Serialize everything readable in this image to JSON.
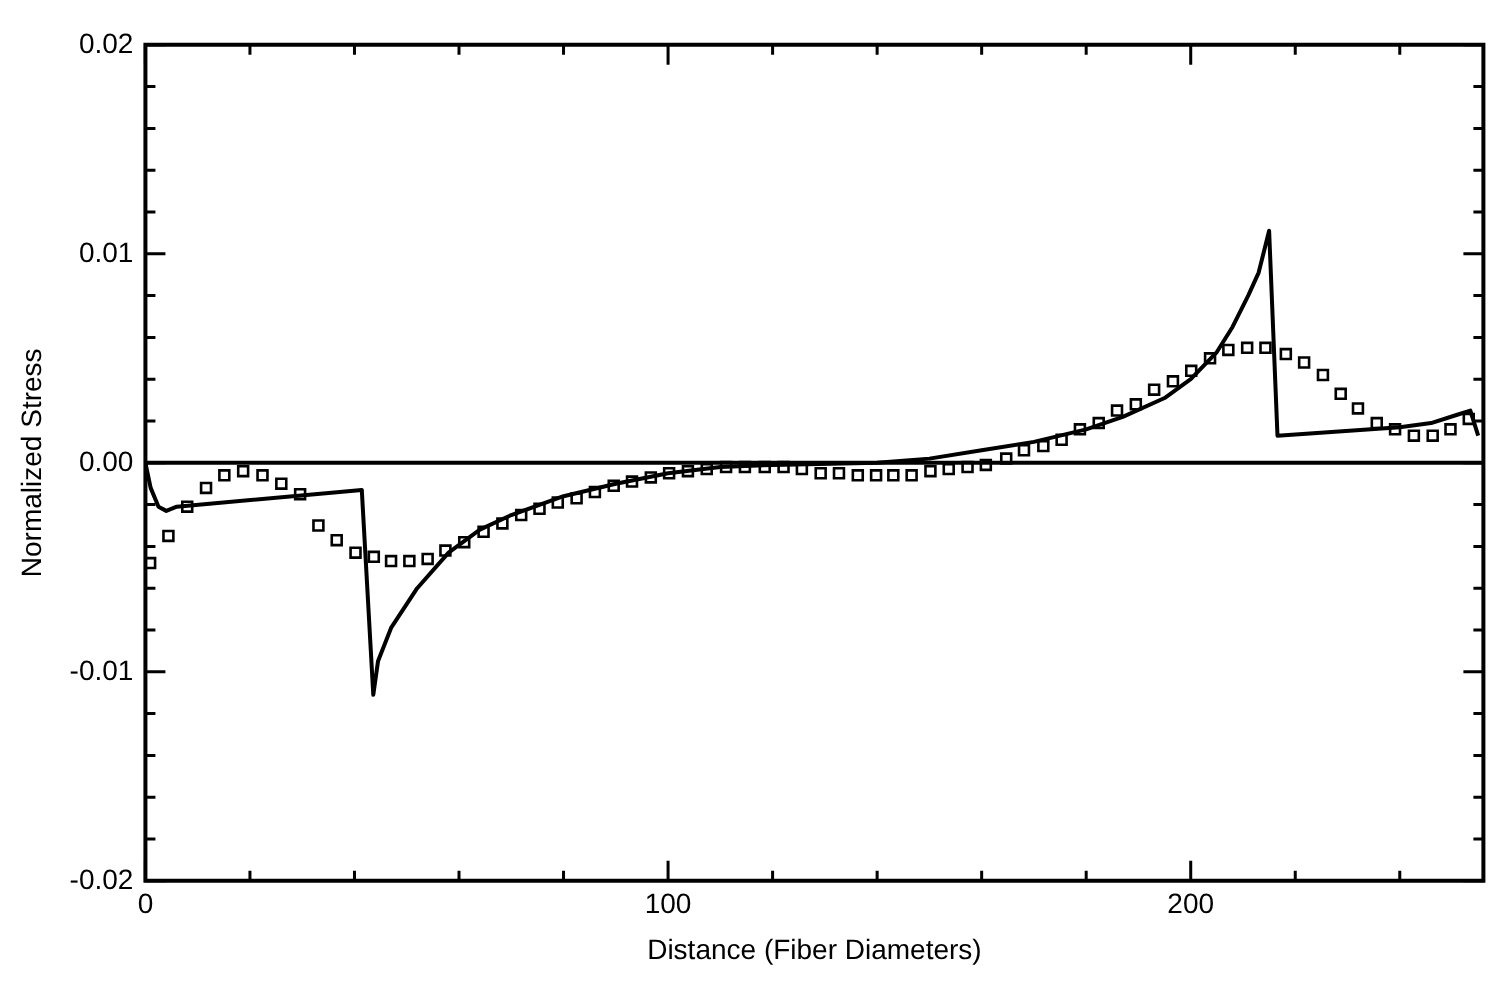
{
  "chart_data": {
    "type": "line",
    "xlabel": "Distance (Fiber Diameters)",
    "ylabel": "Normalized Stress",
    "xlim": [
      0,
      256
    ],
    "ylim": [
      -0.02,
      0.02
    ],
    "xticks": [
      0,
      {
        "value": 20,
        "label": null
      },
      {
        "value": 40,
        "label": null
      },
      {
        "value": 60,
        "label": null
      },
      {
        "value": 80,
        "label": null
      },
      100,
      {
        "value": 120,
        "label": null
      },
      {
        "value": 140,
        "label": null
      },
      {
        "value": 160,
        "label": null
      },
      {
        "value": 180,
        "label": null
      },
      200,
      {
        "value": 220,
        "label": null
      },
      {
        "value": 240,
        "label": null
      }
    ],
    "yticks": [
      {
        "value": -0.02,
        "label": "-0.02"
      },
      {
        "value": -0.018,
        "label": null
      },
      {
        "value": -0.016,
        "label": null
      },
      {
        "value": -0.014,
        "label": null
      },
      {
        "value": -0.012,
        "label": null
      },
      {
        "value": -0.01,
        "label": "-0.01"
      },
      {
        "value": -0.008,
        "label": null
      },
      {
        "value": -0.006,
        "label": null
      },
      {
        "value": -0.004,
        "label": null
      },
      {
        "value": -0.002,
        "label": null
      },
      {
        "value": 0,
        "label": "0.00"
      },
      {
        "value": 0.002,
        "label": null
      },
      {
        "value": 0.004,
        "label": null
      },
      {
        "value": 0.006,
        "label": null
      },
      {
        "value": 0.008,
        "label": null
      },
      {
        "value": 0.01,
        "label": "0.01"
      },
      {
        "value": 0.012,
        "label": null
      },
      {
        "value": 0.014,
        "label": null
      },
      {
        "value": 0.016,
        "label": null
      },
      {
        "value": 0.018,
        "label": null
      },
      {
        "value": 0.02,
        "label": "0.02"
      }
    ],
    "grid": false,
    "legend": false,
    "ref_lines": [
      {
        "axis": "y",
        "value": 0,
        "color": "#000000"
      }
    ],
    "series": [
      {
        "type": "line",
        "marker": "none",
        "line_style": "solid",
        "color": "#000000",
        "x": [
          0,
          1,
          2.5,
          4,
          6,
          41.4,
          43.6,
          44.5,
          47,
          52,
          58,
          64,
          70,
          80,
          90,
          100,
          110,
          120,
          140,
          150,
          160,
          170,
          180,
          187,
          195,
          200,
          205,
          208,
          211,
          213,
          215,
          216.6,
          240,
          246,
          251,
          253.5,
          255
        ],
        "values": [
          0,
          -0.0012,
          -0.0021,
          -0.0023,
          -0.0021,
          -0.0013,
          -0.0111,
          -0.0095,
          -0.0079,
          -0.006,
          -0.0043,
          -0.0032,
          -0.0025,
          -0.0016,
          -0.001,
          -0.0005,
          -0.0002,
          -0.0001,
          0,
          0.0002,
          0.0006,
          0.001,
          0.0016,
          0.0022,
          0.0031,
          0.004,
          0.0053,
          0.0065,
          0.008,
          0.0091,
          0.0111,
          0.0013,
          0.0017,
          0.0019,
          0.0023,
          0.0025,
          0.0013
        ]
      },
      {
        "type": "scatter",
        "marker": "square",
        "color": "#000000",
        "x": [
          0.9,
          4.4,
          8,
          11.6,
          15.1,
          18.7,
          22.4,
          26,
          29.6,
          33.1,
          36.6,
          40.2,
          43.7,
          47,
          50.5,
          54,
          57.4,
          61,
          64.7,
          68.3,
          71.9,
          75.4,
          78.9,
          82.5,
          86,
          89.6,
          93.1,
          96.7,
          100.2,
          103.8,
          107.4,
          111.1,
          114.7,
          118.5,
          122.1,
          125.6,
          129.2,
          132.7,
          136.3,
          139.8,
          143.1,
          146.6,
          150.2,
          153.7,
          157.3,
          160.8,
          164.7,
          168.1,
          171.8,
          175.3,
          178.8,
          182.4,
          185.9,
          189.5,
          193,
          196.6,
          200.1,
          203.7,
          207.2,
          210.8,
          214.3,
          218.2,
          221.7,
          225.3,
          228.7,
          232,
          235.6,
          239.1,
          242.7,
          246.3,
          249.7,
          253.2
        ],
        "values": [
          -0.0048,
          -0.0035,
          -0.0021,
          -0.0012,
          -0.0006,
          -0.0004,
          -0.0006,
          -0.001,
          -0.0015,
          -0.003,
          -0.0037,
          -0.0043,
          -0.0045,
          -0.0047,
          -0.0047,
          -0.0046,
          -0.0042,
          -0.0038,
          -0.0033,
          -0.0029,
          -0.0025,
          -0.0022,
          -0.0019,
          -0.0017,
          -0.0014,
          -0.0011,
          -0.0009,
          -0.0007,
          -0.0005,
          -0.0004,
          -0.0003,
          -0.0002,
          -0.0002,
          -0.0002,
          -0.0002,
          -0.0003,
          -0.0005,
          -0.0005,
          -0.0006,
          -0.0006,
          -0.0006,
          -0.0006,
          -0.0004,
          -0.0003,
          -0.0002,
          -0.0001,
          0.0002,
          0.0006,
          0.0008,
          0.0011,
          0.0016,
          0.0019,
          0.0025,
          0.0028,
          0.0035,
          0.0039,
          0.0044,
          0.005,
          0.0054,
          0.0055,
          0.0055,
          0.0052,
          0.0048,
          0.0042,
          0.0033,
          0.0026,
          0.0019,
          0.0016,
          0.0013,
          0.0013,
          0.0016,
          0.0021
        ]
      }
    ]
  }
}
